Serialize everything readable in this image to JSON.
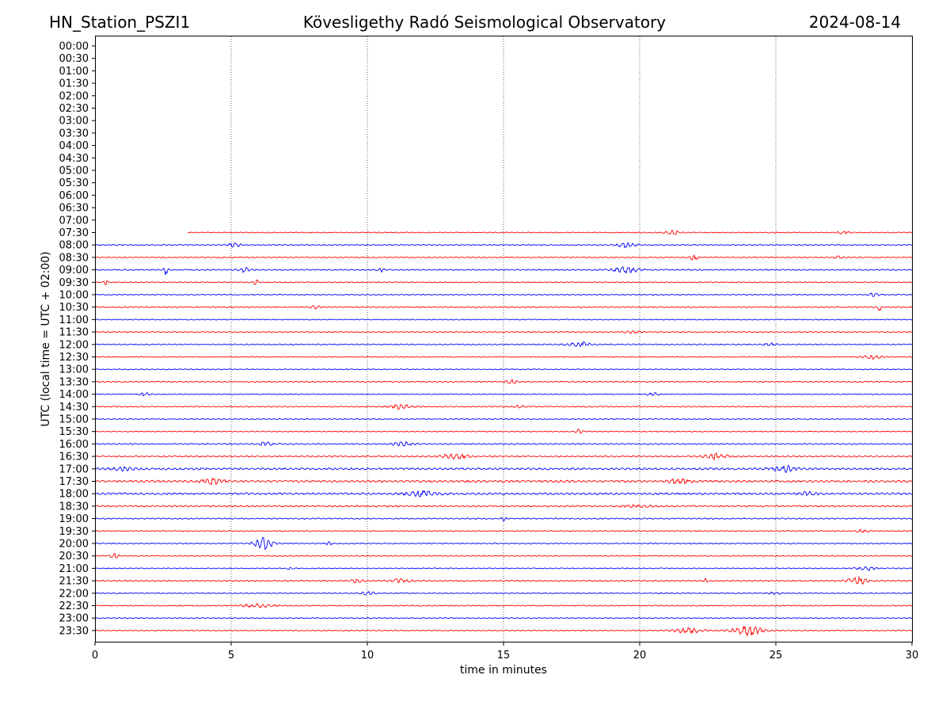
{
  "header": {
    "station": "HN_Station_PSZI1",
    "observatory": "Kövesligethy Radó Seismological Observatory",
    "date": "2024-08-14"
  },
  "chart_data": {
    "type": "line",
    "title": "Kövesligethy Radó Seismological Observatory",
    "xlabel": "time in minutes",
    "ylabel": "UTC (local time = UTC + 02:00)",
    "xlim": [
      0,
      30
    ],
    "xticks": [
      "0",
      "5",
      "10",
      "15",
      "20",
      "25",
      "30"
    ],
    "vertical_gridlines_minutes": [
      5,
      10,
      15,
      20,
      25
    ],
    "row_labels": [
      "00:00",
      "00:30",
      "01:00",
      "01:30",
      "02:00",
      "02:30",
      "03:00",
      "03:30",
      "04:00",
      "04:30",
      "05:00",
      "05:30",
      "06:00",
      "06:30",
      "07:00",
      "07:30",
      "08:00",
      "08:30",
      "09:00",
      "09:30",
      "10:00",
      "10:30",
      "11:00",
      "11:30",
      "12:00",
      "12:30",
      "13:00",
      "13:30",
      "14:00",
      "14:30",
      "15:00",
      "15:30",
      "16:00",
      "16:30",
      "17:00",
      "17:30",
      "18:00",
      "18:30",
      "19:00",
      "19:30",
      "20:00",
      "20:30",
      "21:00",
      "21:30",
      "22:00",
      "22:30",
      "23:00",
      "23:30"
    ],
    "colors": {
      "odd_rows": "#ff0000",
      "even_rows": "#0000ff"
    },
    "first_trace_row": "07:30",
    "first_trace_start_minute": 3.4,
    "traces": [
      {
        "row": "07:30",
        "start": 3.4,
        "noise": 0.6,
        "events": [
          [
            21.2,
            0.4,
            2.5
          ],
          [
            27.5,
            0.3,
            2.0
          ]
        ]
      },
      {
        "row": "08:00",
        "start": 0,
        "noise": 0.7,
        "events": [
          [
            5.1,
            0.3,
            3.0
          ],
          [
            19.5,
            0.5,
            3.0
          ]
        ]
      },
      {
        "row": "08:30",
        "start": 0,
        "noise": 0.6,
        "events": [
          [
            22.0,
            0.2,
            4.0
          ],
          [
            27.3,
            0.2,
            2.0
          ]
        ]
      },
      {
        "row": "09:00",
        "start": 0,
        "noise": 0.8,
        "events": [
          [
            2.6,
            0.12,
            6.0
          ],
          [
            5.5,
            0.3,
            3.0
          ],
          [
            10.5,
            0.2,
            2.5
          ],
          [
            19.5,
            0.6,
            4.5
          ]
        ]
      },
      {
        "row": "09:30",
        "start": 0,
        "noise": 0.6,
        "events": [
          [
            0.4,
            0.1,
            3.5
          ],
          [
            5.9,
            0.1,
            5.0
          ]
        ]
      },
      {
        "row": "10:00",
        "start": 0,
        "noise": 0.6,
        "events": [
          [
            28.6,
            0.3,
            2.0
          ]
        ]
      },
      {
        "row": "10:30",
        "start": 0,
        "noise": 0.7,
        "events": [
          [
            8.1,
            0.3,
            2.0
          ],
          [
            28.8,
            0.1,
            5.0
          ]
        ]
      },
      {
        "row": "11:00",
        "start": 0,
        "noise": 0.6,
        "events": []
      },
      {
        "row": "11:30",
        "start": 0,
        "noise": 0.6,
        "events": [
          [
            19.8,
            0.4,
            2.0
          ]
        ]
      },
      {
        "row": "12:00",
        "start": 0,
        "noise": 0.7,
        "events": [
          [
            17.8,
            0.6,
            3.0
          ],
          [
            24.8,
            0.3,
            2.0
          ]
        ]
      },
      {
        "row": "12:30",
        "start": 0,
        "noise": 0.6,
        "events": [
          [
            28.5,
            0.5,
            3.0
          ]
        ]
      },
      {
        "row": "13:00",
        "start": 0,
        "noise": 0.6,
        "events": []
      },
      {
        "row": "13:30",
        "start": 0,
        "noise": 0.7,
        "events": [
          [
            15.3,
            0.3,
            2.5
          ]
        ]
      },
      {
        "row": "14:00",
        "start": 0,
        "noise": 0.6,
        "events": [
          [
            1.8,
            0.3,
            2.0
          ],
          [
            20.5,
            0.3,
            2.0
          ]
        ]
      },
      {
        "row": "14:30",
        "start": 0,
        "noise": 0.7,
        "events": [
          [
            11.2,
            0.6,
            3.0
          ],
          [
            15.6,
            0.3,
            2.0
          ]
        ]
      },
      {
        "row": "15:00",
        "start": 0,
        "noise": 0.6,
        "events": []
      },
      {
        "row": "15:30",
        "start": 0,
        "noise": 0.6,
        "events": [
          [
            17.8,
            0.2,
            3.0
          ]
        ]
      },
      {
        "row": "16:00",
        "start": 0,
        "noise": 0.8,
        "events": [
          [
            6.3,
            0.4,
            2.5
          ],
          [
            11.3,
            0.5,
            2.5
          ]
        ]
      },
      {
        "row": "16:30",
        "start": 0,
        "noise": 0.9,
        "events": [
          [
            13.2,
            0.6,
            4.0
          ],
          [
            22.8,
            0.6,
            3.5
          ]
        ]
      },
      {
        "row": "17:00",
        "start": 0,
        "noise": 1.3,
        "events": [
          [
            25.3,
            0.6,
            4.0
          ],
          [
            1.0,
            0.6,
            2.0
          ]
        ]
      },
      {
        "row": "17:30",
        "start": 0,
        "noise": 1.4,
        "events": [
          [
            4.3,
            0.6,
            3.0
          ],
          [
            21.5,
            0.6,
            2.5
          ]
        ]
      },
      {
        "row": "18:00",
        "start": 0,
        "noise": 1.3,
        "events": [
          [
            12.0,
            0.8,
            3.0
          ],
          [
            26.2,
            0.4,
            2.0
          ]
        ]
      },
      {
        "row": "18:30",
        "start": 0,
        "noise": 1.0,
        "events": [
          [
            20.0,
            0.8,
            1.5
          ]
        ]
      },
      {
        "row": "19:00",
        "start": 0,
        "noise": 0.8,
        "events": [
          [
            15.0,
            0.1,
            3.0
          ]
        ]
      },
      {
        "row": "19:30",
        "start": 0,
        "noise": 0.7,
        "events": [
          [
            28.2,
            0.3,
            2.0
          ]
        ]
      },
      {
        "row": "20:00",
        "start": 0,
        "noise": 0.7,
        "events": [
          [
            6.2,
            0.5,
            8.0
          ],
          [
            8.6,
            0.1,
            4.0
          ]
        ]
      },
      {
        "row": "20:30",
        "start": 0,
        "noise": 0.6,
        "events": [
          [
            0.7,
            0.2,
            3.5
          ]
        ]
      },
      {
        "row": "21:00",
        "start": 0,
        "noise": 0.6,
        "events": [
          [
            7.2,
            0.2,
            2.0
          ],
          [
            28.3,
            0.5,
            2.5
          ]
        ]
      },
      {
        "row": "21:30",
        "start": 0,
        "noise": 0.8,
        "events": [
          [
            9.6,
            0.3,
            2.5
          ],
          [
            11.2,
            0.6,
            2.5
          ],
          [
            28.0,
            0.5,
            5.0
          ],
          [
            22.4,
            0.1,
            3.0
          ]
        ]
      },
      {
        "row": "22:00",
        "start": 0,
        "noise": 0.6,
        "events": [
          [
            10.0,
            0.4,
            2.0
          ],
          [
            25.0,
            0.4,
            1.5
          ]
        ]
      },
      {
        "row": "22:30",
        "start": 0,
        "noise": 0.7,
        "events": [
          [
            6.0,
            0.8,
            2.5
          ]
        ]
      },
      {
        "row": "23:00",
        "start": 0,
        "noise": 0.6,
        "events": []
      },
      {
        "row": "23:30",
        "start": 0,
        "noise": 0.6,
        "events": [
          [
            21.8,
            0.7,
            4.0
          ],
          [
            24.0,
            0.8,
            6.0
          ]
        ]
      }
    ]
  }
}
